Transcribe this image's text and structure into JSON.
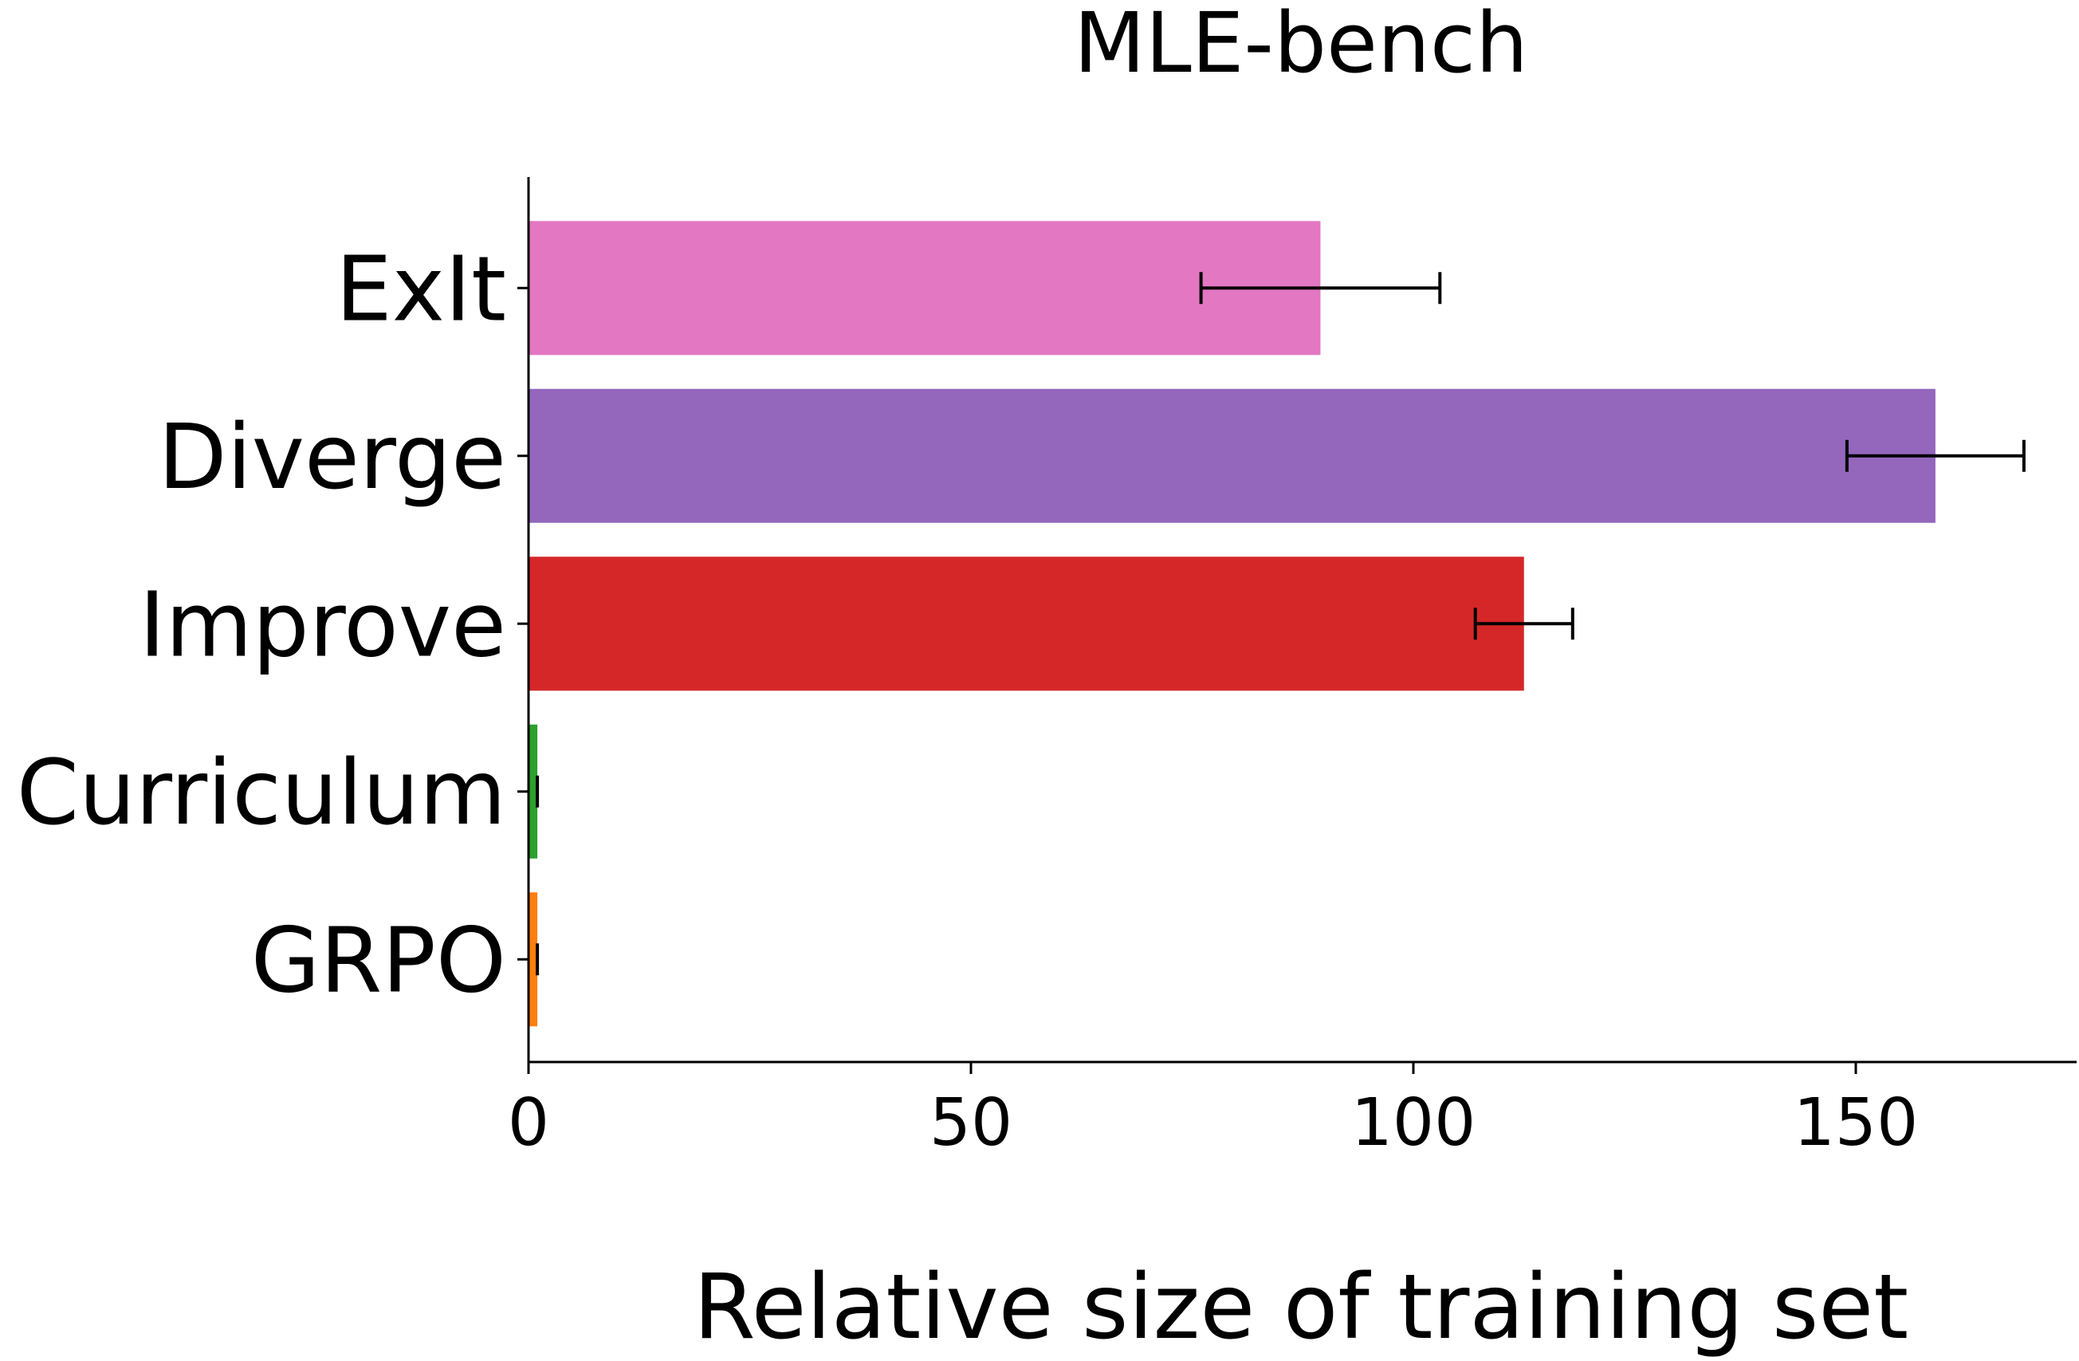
{
  "chart_data": {
    "type": "bar",
    "orientation": "horizontal",
    "title": "MLE-bench",
    "xlabel": "Relative size of training set",
    "ylabel": "",
    "categories": [
      "ExIt",
      "Diverge",
      "Improve",
      "Curriculum",
      "GRPO"
    ],
    "values": [
      89.5,
      159,
      112.5,
      1,
      1
    ],
    "errors": [
      [
        76,
        103
      ],
      [
        149,
        169
      ],
      [
        107,
        118
      ],
      [
        1,
        1
      ],
      [
        1,
        1
      ]
    ],
    "colors": [
      "#e377c2",
      "#9467bd",
      "#d62728",
      "#2ca02c",
      "#ff7f0e"
    ],
    "xlim": [
      0,
      177
    ],
    "xticks": [
      "0",
      "50",
      "100",
      "150"
    ],
    "xtick_values": [
      0,
      50,
      100,
      150
    ],
    "grid": false,
    "legend": "none"
  }
}
